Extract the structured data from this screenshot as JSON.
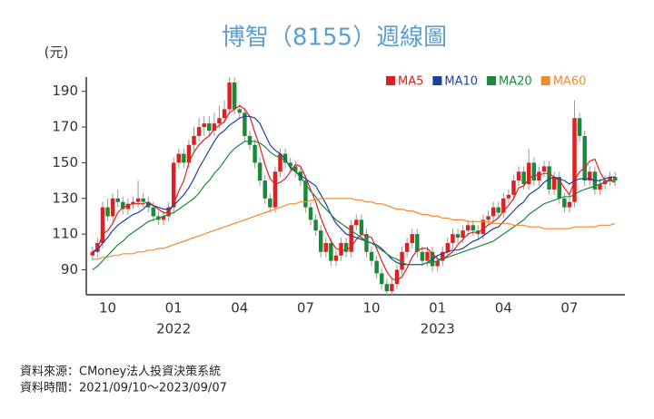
{
  "chart_data": {
    "type": "candlestick",
    "title": "博智（8155）週線圖",
    "y_unit_label": "(元)",
    "source": "資料來源：CMoney法人投資決策系統",
    "date_range": "資料時間：2021/09/10～2023/09/07",
    "up_color": "#e02020",
    "down_color": "#1a8a3a",
    "ylim": [
      76,
      198
    ],
    "yticks": [
      90,
      110,
      130,
      150,
      170,
      190
    ],
    "categories": [
      null,
      null,
      null,
      "10",
      null,
      null,
      null,
      null,
      null,
      null,
      null,
      null,
      null,
      null,
      null,
      null,
      "01",
      null,
      null,
      null,
      null,
      null,
      null,
      null,
      null,
      null,
      null,
      null,
      null,
      "04",
      null,
      null,
      null,
      null,
      null,
      null,
      null,
      null,
      null,
      null,
      null,
      null,
      "07",
      null,
      null,
      null,
      null,
      null,
      null,
      null,
      null,
      null,
      null,
      null,
      null,
      "10",
      null,
      null,
      null,
      null,
      null,
      null,
      null,
      null,
      null,
      null,
      null,
      null,
      "01",
      null,
      null,
      null,
      null,
      null,
      null,
      null,
      null,
      null,
      null,
      null,
      null,
      "04",
      null,
      null,
      null,
      null,
      null,
      null,
      null,
      null,
      null,
      null,
      null,
      null,
      "07",
      null,
      null,
      null,
      null,
      null,
      null,
      null,
      null,
      null
    ],
    "year_labels": [
      null,
      null,
      null,
      null,
      null,
      null,
      null,
      null,
      null,
      null,
      null,
      null,
      null,
      null,
      null,
      null,
      "2022",
      null,
      null,
      null,
      null,
      null,
      null,
      null,
      null,
      null,
      null,
      null,
      null,
      null,
      null,
      null,
      null,
      null,
      null,
      null,
      null,
      null,
      null,
      null,
      null,
      null,
      null,
      null,
      null,
      null,
      null,
      null,
      null,
      null,
      null,
      null,
      null,
      null,
      null,
      null,
      null,
      null,
      null,
      null,
      null,
      null,
      null,
      null,
      null,
      null,
      null,
      null,
      "2023",
      null,
      null,
      null,
      null,
      null,
      null,
      null,
      null,
      null,
      null,
      null,
      null,
      null,
      null,
      null,
      null,
      null,
      null,
      null,
      null,
      null,
      null,
      null,
      null,
      null,
      null,
      null,
      null,
      null,
      null,
      null,
      null,
      null,
      null,
      null
    ],
    "candles": [
      [
        98,
        103,
        95,
        100
      ],
      [
        100,
        108,
        97,
        105
      ],
      [
        105,
        128,
        102,
        125
      ],
      [
        125,
        130,
        117,
        120
      ],
      [
        120,
        133,
        117,
        130
      ],
      [
        130,
        135,
        125,
        128
      ],
      [
        128,
        131,
        121,
        124
      ],
      [
        124,
        130,
        121,
        127
      ],
      [
        127,
        131,
        124,
        128
      ],
      [
        128,
        140,
        125,
        130
      ],
      [
        130,
        133,
        125,
        128
      ],
      [
        128,
        131,
        122,
        125
      ],
      [
        125,
        128,
        117,
        120
      ],
      [
        120,
        123,
        115,
        118
      ],
      [
        118,
        123,
        115,
        120
      ],
      [
        120,
        128,
        117,
        125
      ],
      [
        125,
        153,
        122,
        150
      ],
      [
        150,
        158,
        147,
        155
      ],
      [
        155,
        158,
        147,
        150
      ],
      [
        150,
        163,
        147,
        160
      ],
      [
        160,
        170,
        157,
        165
      ],
      [
        165,
        175,
        162,
        170
      ],
      [
        170,
        176,
        165,
        172
      ],
      [
        172,
        176,
        165,
        168
      ],
      [
        168,
        178,
        165,
        172
      ],
      [
        172,
        182,
        169,
        175
      ],
      [
        175,
        185,
        172,
        180
      ],
      [
        180,
        198,
        177,
        195
      ],
      [
        195,
        198,
        177,
        180
      ],
      [
        180,
        183,
        175,
        178
      ],
      [
        178,
        181,
        162,
        165
      ],
      [
        165,
        168,
        157,
        160
      ],
      [
        160,
        163,
        147,
        150
      ],
      [
        150,
        153,
        137,
        140
      ],
      [
        140,
        143,
        127,
        130
      ],
      [
        130,
        133,
        122,
        125
      ],
      [
        125,
        148,
        122,
        145
      ],
      [
        145,
        158,
        142,
        155
      ],
      [
        155,
        158,
        147,
        150
      ],
      [
        150,
        153,
        145,
        148
      ],
      [
        148,
        151,
        142,
        145
      ],
      [
        145,
        148,
        137,
        140
      ],
      [
        140,
        143,
        122,
        125
      ],
      [
        125,
        128,
        115,
        118
      ],
      [
        118,
        121,
        109,
        112
      ],
      [
        112,
        115,
        97,
        100
      ],
      [
        100,
        108,
        97,
        105
      ],
      [
        105,
        108,
        92,
        95
      ],
      [
        95,
        101,
        92,
        98
      ],
      [
        98,
        108,
        95,
        105
      ],
      [
        105,
        108,
        97,
        100
      ],
      [
        100,
        118,
        97,
        115
      ],
      [
        115,
        121,
        112,
        118
      ],
      [
        118,
        121,
        107,
        110
      ],
      [
        110,
        113,
        97,
        100
      ],
      [
        100,
        103,
        92,
        95
      ],
      [
        95,
        98,
        85,
        88
      ],
      [
        88,
        91,
        79,
        82
      ],
      [
        82,
        85,
        76,
        78
      ],
      [
        78,
        85,
        76,
        82
      ],
      [
        82,
        93,
        79,
        90
      ],
      [
        90,
        103,
        87,
        100
      ],
      [
        100,
        108,
        97,
        105
      ],
      [
        105,
        113,
        102,
        110
      ],
      [
        110,
        113,
        97,
        100
      ],
      [
        100,
        103,
        92,
        95
      ],
      [
        95,
        103,
        92,
        100
      ],
      [
        100,
        103,
        89,
        92
      ],
      [
        92,
        98,
        89,
        95
      ],
      [
        95,
        103,
        92,
        100
      ],
      [
        100,
        108,
        97,
        105
      ],
      [
        105,
        113,
        102,
        110
      ],
      [
        110,
        113,
        105,
        108
      ],
      [
        108,
        115,
        105,
        112
      ],
      [
        112,
        118,
        109,
        115
      ],
      [
        115,
        118,
        109,
        112
      ],
      [
        112,
        115,
        107,
        110
      ],
      [
        110,
        121,
        107,
        118
      ],
      [
        118,
        123,
        115,
        120
      ],
      [
        120,
        128,
        117,
        125
      ],
      [
        125,
        128,
        119,
        122
      ],
      [
        122,
        133,
        119,
        130
      ],
      [
        130,
        135,
        127,
        132
      ],
      [
        132,
        143,
        129,
        140
      ],
      [
        140,
        148,
        137,
        145
      ],
      [
        145,
        148,
        135,
        138
      ],
      [
        138,
        158,
        135,
        150
      ],
      [
        150,
        153,
        137,
        140
      ],
      [
        140,
        148,
        137,
        145
      ],
      [
        145,
        151,
        142,
        148
      ],
      [
        148,
        151,
        132,
        135
      ],
      [
        135,
        145,
        132,
        142
      ],
      [
        142,
        145,
        127,
        130
      ],
      [
        130,
        133,
        122,
        125
      ],
      [
        125,
        131,
        122,
        128
      ],
      [
        128,
        185,
        125,
        175
      ],
      [
        175,
        178,
        162,
        165
      ],
      [
        165,
        168,
        137,
        140
      ],
      [
        140,
        148,
        137,
        145
      ],
      [
        145,
        148,
        132,
        135
      ],
      [
        135,
        141,
        132,
        138
      ],
      [
        138,
        143,
        135,
        140
      ],
      [
        140,
        145,
        137,
        142
      ],
      [
        142,
        145,
        137,
        140
      ]
    ],
    "series": [
      {
        "name": "MA5",
        "color": "#e02020",
        "values": [
          100,
          102,
          110,
          112,
          116,
          122,
          125,
          126,
          127,
          127,
          127,
          128,
          126,
          124,
          122,
          122,
          127,
          134,
          140,
          150,
          156,
          160,
          163,
          165,
          169,
          171,
          173,
          178,
          180,
          182,
          180,
          176,
          167,
          159,
          149,
          141,
          138,
          139,
          141,
          145,
          149,
          148,
          142,
          135,
          128,
          119,
          112,
          106,
          102,
          101,
          101,
          103,
          107,
          110,
          109,
          108,
          102,
          95,
          89,
          85,
          84,
          86,
          91,
          97,
          101,
          102,
          102,
          99,
          96,
          96,
          98,
          100,
          104,
          107,
          110,
          111,
          111,
          113,
          115,
          117,
          119,
          123,
          126,
          130,
          136,
          137,
          141,
          143,
          143,
          144,
          144,
          142,
          140,
          136,
          132,
          140,
          145,
          147,
          151,
          152,
          145,
          140,
          140,
          139
        ]
      },
      {
        "name": "MA10",
        "color": "#1f3fa0",
        "values": [
          100,
          101,
          105,
          108,
          112,
          115,
          117,
          119,
          121,
          122,
          124,
          127,
          126,
          125,
          124,
          124,
          126,
          129,
          132,
          136,
          141,
          147,
          152,
          157,
          162,
          166,
          168,
          171,
          173,
          175,
          176,
          176,
          175,
          172,
          166,
          160,
          157,
          155,
          152,
          147,
          145,
          143,
          141,
          139,
          137,
          132,
          127,
          121,
          116,
          113,
          110,
          109,
          108,
          107,
          106,
          105,
          104,
          102,
          99,
          96,
          94,
          93,
          93,
          93,
          93,
          93,
          94,
          96,
          98,
          99,
          100,
          101,
          101,
          102,
          104,
          106,
          107,
          109,
          111,
          113,
          114,
          117,
          120,
          123,
          126,
          128,
          132,
          134,
          136,
          139,
          141,
          142,
          141,
          140,
          138,
          140,
          141,
          141,
          141,
          140,
          140,
          141,
          142,
          142
        ]
      },
      {
        "name": "MA20",
        "color": "#1a8a3a",
        "values": [
          90,
          92,
          95,
          98,
          101,
          104,
          106,
          109,
          111,
          113,
          115,
          117,
          118,
          119,
          120,
          121,
          122,
          124,
          126,
          128,
          130,
          133,
          137,
          140,
          144,
          147,
          151,
          155,
          158,
          160,
          162,
          162,
          162,
          161,
          159,
          156,
          154,
          153,
          151,
          148,
          145,
          142,
          138,
          134,
          131,
          127,
          124,
          121,
          118,
          116,
          114,
          112,
          110,
          108,
          106,
          105,
          103,
          101,
          99,
          97,
          96,
          94,
          93,
          93,
          93,
          93,
          94,
          94,
          95,
          96,
          97,
          98,
          99,
          100,
          101,
          102,
          103,
          104,
          105,
          106,
          108,
          110,
          112,
          114,
          116,
          118,
          121,
          123,
          125,
          127,
          128,
          129,
          130,
          131,
          131,
          132,
          134,
          135,
          136,
          137,
          138,
          139,
          140,
          140
        ]
      },
      {
        "name": "MA60",
        "color": "#f08a30",
        "values": [
          96,
          96,
          97,
          97,
          98,
          98,
          99,
          99,
          99,
          100,
          100,
          101,
          101,
          102,
          102,
          103,
          104,
          105,
          106,
          107,
          108,
          109,
          110,
          111,
          112,
          113,
          114,
          115,
          116,
          117,
          118,
          119,
          120,
          121,
          122,
          123,
          124,
          125,
          126,
          127,
          127,
          128,
          128,
          129,
          129,
          130,
          130,
          130,
          130,
          130,
          130,
          130,
          129,
          129,
          128,
          128,
          127,
          127,
          126,
          125,
          124,
          124,
          123,
          123,
          122,
          121,
          121,
          120,
          120,
          119,
          119,
          118,
          118,
          118,
          117,
          117,
          117,
          117,
          117,
          116,
          116,
          116,
          116,
          115,
          115,
          115,
          114,
          114,
          114,
          113,
          113,
          113,
          113,
          113,
          113,
          114,
          114,
          114,
          114,
          114,
          115,
          115,
          115,
          116
        ]
      }
    ]
  }
}
